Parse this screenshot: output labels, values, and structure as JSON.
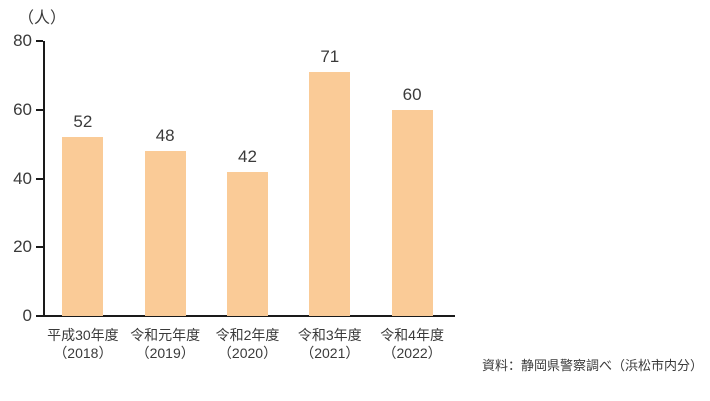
{
  "chart_data": {
    "type": "bar",
    "title": "",
    "unit_label": "（人）",
    "categories": [
      "平成30年度",
      "令和元年度",
      "令和2年度",
      "令和3年度",
      "令和4年度"
    ],
    "category_years": [
      "（2018）",
      "（2019）",
      "（2020）",
      "（2021）",
      "（2022）"
    ],
    "values": [
      52,
      48,
      42,
      71,
      60
    ],
    "ylim": [
      0,
      80
    ],
    "yticks": [
      0,
      20,
      40,
      60,
      80
    ],
    "grid": false,
    "legend": false,
    "bar_color": "#FACB97",
    "axis_color": "#1A1A1A",
    "text_color": "#3A3A3A"
  },
  "source_note": "資料：静岡県警察調べ（浜松市内分）"
}
